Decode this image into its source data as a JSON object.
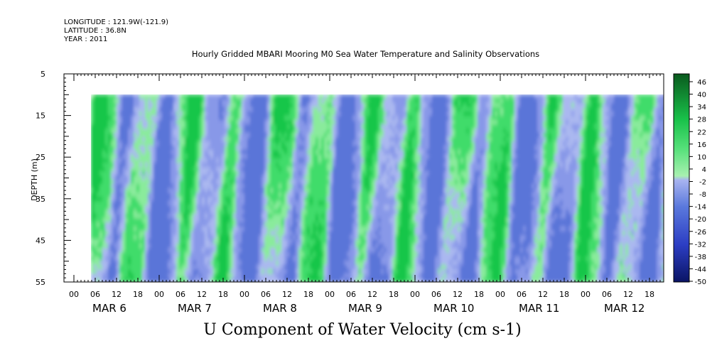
{
  "header": {
    "longitude": "LONGITUDE : 121.9W(-121.9)",
    "latitude": "LATITUDE : 36.8N",
    "year": "YEAR : 2011"
  },
  "chart_data": {
    "type": "heatmap",
    "title": "Hourly Gridded MBARI Mooring M0 Sea Water Temperature and Salinity Observations",
    "xlabel": "U Component of Water Velocity (cm s-1)",
    "ylabel": "DEPTH (m)",
    "y_ticks": [
      5,
      15,
      25,
      35,
      45,
      55
    ],
    "ylim": [
      5,
      55
    ],
    "y_reversed": true,
    "x_hour_labels": [
      "00",
      "06",
      "12",
      "18",
      "00",
      "06",
      "12",
      "18",
      "00",
      "06",
      "12",
      "18",
      "00",
      "06",
      "12",
      "18",
      "00",
      "06",
      "12",
      "18",
      "00",
      "06",
      "12",
      "18",
      "00",
      "06",
      "12",
      "18"
    ],
    "x_day_labels": [
      "MAR  6",
      "MAR  7",
      "MAR  8",
      "MAR  9",
      "MAR 10",
      "MAR 11",
      "MAR 12"
    ],
    "data_depth_range": [
      10,
      55
    ],
    "colorbar": {
      "labels": [
        "46",
        "40",
        "34",
        "28",
        "22",
        "16",
        "10",
        "4",
        "-2",
        "-8",
        "-14",
        "-20",
        "-26",
        "-32",
        "-38",
        "-44",
        "-50"
      ],
      "range": [
        -50,
        50
      ]
    },
    "colors": {
      "strong_positive": "#0a5a1e",
      "positive": "#19d250",
      "weak_positive": "#a8f0b0",
      "weak_negative": "#a8b4f0",
      "negative": "#5a78dc",
      "strong_negative": "#0a1464"
    }
  }
}
